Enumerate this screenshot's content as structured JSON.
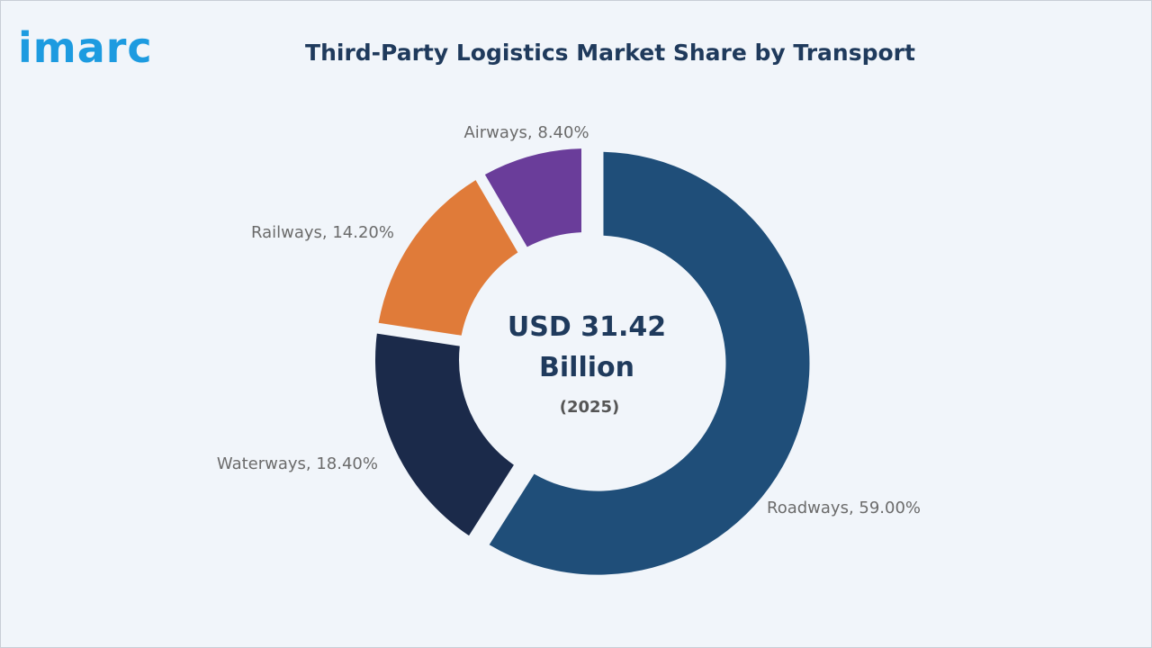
{
  "brand": {
    "logo_text": "imarc",
    "accent_color": "#1d9be0"
  },
  "chart_data": {
    "type": "pie",
    "title": "Third-Party Logistics Market Share by Transport",
    "donut": true,
    "center_text": {
      "value_line1": "USD 31.42",
      "value_line2": "Billion",
      "year": "(2025)"
    },
    "slices": [
      {
        "name": "Roadways",
        "value": 59.0,
        "label": "Roadways, 59.00%",
        "color": "#1f4e79",
        "exploded": true
      },
      {
        "name": "Waterways",
        "value": 18.4,
        "label": "Waterways, 18.40%",
        "color": "#1b2a4a",
        "exploded": false
      },
      {
        "name": "Railways",
        "value": 14.2,
        "label": "Railways, 14.20%",
        "color": "#e07b39",
        "exploded": false
      },
      {
        "name": "Airways",
        "value": 8.4,
        "label": "Airways, 8.40%",
        "color": "#6a3d9a",
        "exploded": false
      }
    ]
  }
}
